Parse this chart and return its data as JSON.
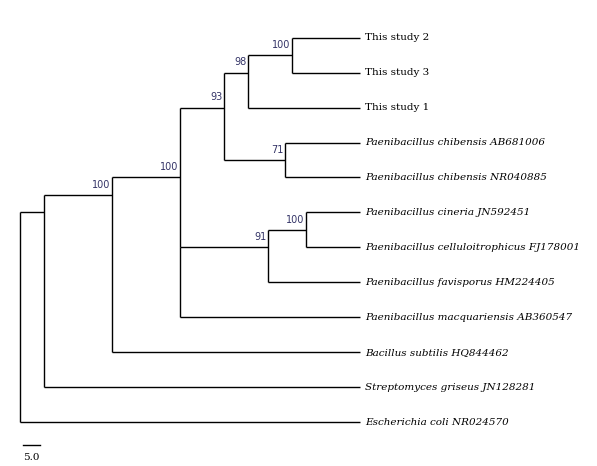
{
  "taxa": [
    "This study 2",
    "This study 3",
    "This study 1",
    "Paenibacillus chibensis AB681006",
    "Paenibacillus chibensis NR040885",
    "Paenibacillus cineria JN592451",
    "Paenibacillus celluloitrophicus FJ178001",
    "Paenibacillus favisporus HM224405",
    "Paenibacillus macquariensis AB360547",
    "Bacillus subtilis HQ844462",
    "Streptomyces griseus JN128281",
    "Escherichia coli NR024570"
  ],
  "italic_taxa": [
    false,
    false,
    false,
    true,
    true,
    true,
    true,
    true,
    true,
    true,
    true,
    true
  ],
  "line_color": "#000000",
  "text_color": "#000000",
  "bg_color": "#ffffff",
  "fontsize": 7.5,
  "scale_fontsize": 7.5,
  "lw": 1.0,
  "scale_label": "5.0"
}
